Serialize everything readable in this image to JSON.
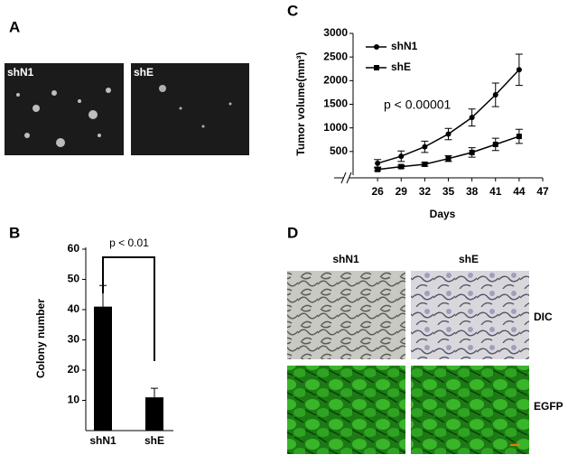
{
  "panel_labels": [
    "A",
    "B",
    "C",
    "D"
  ],
  "colony_images": {
    "labels": [
      "shN1",
      "shE"
    ]
  },
  "tumor_images": {
    "columns": [
      "shN1",
      "shE"
    ],
    "rows": [
      "DIC",
      "EGFP"
    ]
  },
  "chart_data": [
    {
      "type": "bar",
      "categories": [
        "shN1",
        "shE"
      ],
      "values": [
        41,
        11
      ],
      "errors": [
        7,
        3
      ],
      "color": "#000000",
      "ylabel": "Colony number",
      "ylim": [
        0,
        60
      ],
      "yticks": [
        10,
        20,
        30,
        40,
        50,
        60
      ],
      "annotation": "p < 0.01"
    },
    {
      "type": "line",
      "x": [
        26,
        29,
        32,
        35,
        38,
        41,
        44
      ],
      "series": [
        {
          "name": "shN1",
          "color": "#000000",
          "marker": "circle",
          "values": [
            250,
            400,
            600,
            870,
            1220,
            1700,
            2230
          ],
          "errors": [
            80,
            110,
            120,
            120,
            180,
            250,
            330
          ]
        },
        {
          "name": "shE",
          "color": "#000000",
          "marker": "square",
          "values": [
            120,
            180,
            230,
            350,
            480,
            650,
            820
          ],
          "errors": [
            30,
            30,
            40,
            60,
            100,
            130,
            150
          ]
        }
      ],
      "xlabel": "Days",
      "ylabel": "Tumor volume(mm³)",
      "xlim": [
        23,
        47
      ],
      "xticks": [
        26,
        29,
        32,
        35,
        38,
        41,
        44,
        47
      ],
      "ylim": [
        0,
        3000
      ],
      "yticks": [
        500,
        1000,
        1500,
        2000,
        2500,
        3000
      ],
      "annotation": "p < 0.00001",
      "legend": "upper left"
    }
  ]
}
